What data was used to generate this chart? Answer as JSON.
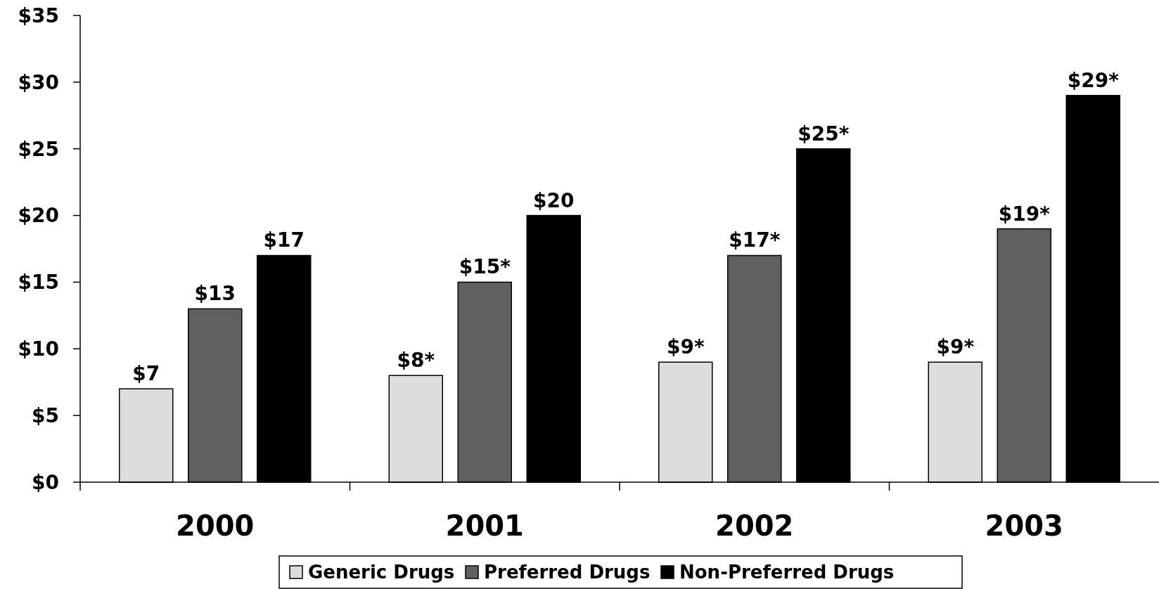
{
  "chart_data": {
    "type": "bar",
    "categories": [
      "2000",
      "2001",
      "2002",
      "2003"
    ],
    "series": [
      {
        "name": "Generic Drugs",
        "color": "#dddddd",
        "values": [
          7,
          8,
          9,
          9
        ],
        "value_labels": [
          "$7",
          "$8*",
          "$9*",
          "$9*"
        ]
      },
      {
        "name": "Preferred Drugs",
        "color": "#606060",
        "values": [
          13,
          15,
          17,
          19
        ],
        "value_labels": [
          "$13",
          "$15*",
          "$17*",
          "$19*"
        ]
      },
      {
        "name": "Non-Preferred Drugs",
        "color": "#000000",
        "values": [
          17,
          20,
          25,
          29
        ],
        "value_labels": [
          "$17",
          "$20",
          "$25*",
          "$29*"
        ]
      }
    ],
    "ylim": [
      0,
      35
    ],
    "yticks": [
      {
        "value": 0,
        "label": "$0"
      },
      {
        "value": 5,
        "label": "$5"
      },
      {
        "value": 10,
        "label": "$10"
      },
      {
        "value": 15,
        "label": "$15"
      },
      {
        "value": 20,
        "label": "$20"
      },
      {
        "value": 25,
        "label": "$25"
      },
      {
        "value": 30,
        "label": "$30"
      },
      {
        "value": 35,
        "label": "$35"
      }
    ],
    "grid": false,
    "legend": "bottom"
  }
}
